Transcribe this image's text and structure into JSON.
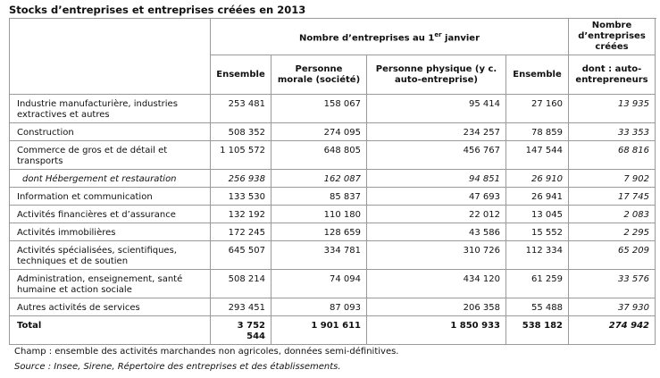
{
  "title": "Stocks d’entreprises et entreprises créées en 2013",
  "header": {
    "group1": [
      "Nombre d’entreprises au 1",
      "er",
      " janvier"
    ],
    "group2": "Nombre d’entreprises créées",
    "columns": [
      "Ensemble",
      "Personne morale (société)",
      "Personne physique (y c. auto-entreprise)",
      "Ensemble",
      "dont : auto-entrepreneurs"
    ]
  },
  "rows": [
    [
      "Industrie manufacturière, industries extractives et autres",
      "253 481",
      "158 067",
      "95 414",
      "27 160",
      "13 935"
    ],
    [
      "Construction",
      "508 352",
      "274 095",
      "234 257",
      "78 859",
      "33 353"
    ],
    [
      "Commerce de gros et de détail et transports",
      "1 105 572",
      "648 805",
      "456 767",
      "147 544",
      "68 816"
    ],
    [
      "dont Hébergement et restauration",
      "256 938",
      "162 087",
      "94 851",
      "26 910",
      "7 902"
    ],
    [
      "Information et communication",
      "133 530",
      "85 837",
      "47 693",
      "26 941",
      "17 745"
    ],
    [
      "Activités financières et d’assurance",
      "132 192",
      "110 180",
      "22 012",
      "13 045",
      "2 083"
    ],
    [
      "Activités immobilières",
      "172 245",
      "128 659",
      "43 586",
      "15 552",
      "2 295"
    ],
    [
      "Activités spécialisées, scientifiques, techniques et de soutien",
      "645 507",
      "334 781",
      "310 726",
      "112 334",
      "65 209"
    ],
    [
      "Administration, enseignement, santé humaine et action sociale",
      "508 214",
      "74 094",
      "434 120",
      "61 259",
      "33 576"
    ],
    [
      "Autres activités de services",
      "293 451",
      "87 093",
      "206 358",
      "55 488",
      "37 930"
    ],
    [
      "Total",
      "3 752 544",
      "1 901 611",
      "1 850 933",
      "538 182",
      "274 942"
    ]
  ],
  "notes": [
    "Champ : ensemble des activités marchandes non agricoles, données semi-définitives.",
    "Source : Insee, Sirene, Répertoire des entreprises et des établissements."
  ]
}
